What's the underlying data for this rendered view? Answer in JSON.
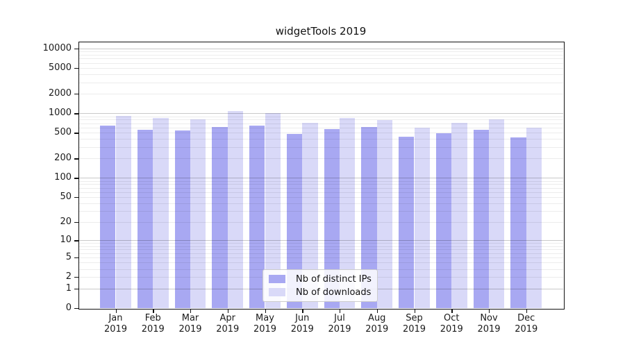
{
  "figure": {
    "title": "widgetTools 2019",
    "background_color": "#ffffff"
  },
  "chart_data": {
    "type": "bar",
    "title": "widgetTools 2019",
    "categories": [
      "Jan",
      "Feb",
      "Mar",
      "Apr",
      "May",
      "Jun",
      "Jul",
      "Aug",
      "Sep",
      "Oct",
      "Nov",
      "Dec"
    ],
    "category_sub_label": "2019",
    "series": [
      {
        "name": "Nb of distinct IPs",
        "color": "#a8a8f2",
        "values": [
          645,
          560,
          545,
          620,
          640,
          480,
          570,
          610,
          435,
          495,
          560,
          425
        ]
      },
      {
        "name": "Nb of downloads",
        "color": "#d9d9f8",
        "values": [
          920,
          845,
          815,
          1085,
          1000,
          715,
          855,
          795,
          605,
          715,
          805,
          595
        ]
      }
    ],
    "y_axis": {
      "scale": "log10(value+1)",
      "ticks": [
        {
          "value": 0,
          "label": "0"
        },
        {
          "value": 1,
          "label": "1"
        },
        {
          "value": 2,
          "label": "2"
        },
        {
          "value": 5,
          "label": "5"
        },
        {
          "value": 10,
          "label": "10"
        },
        {
          "value": 20,
          "label": "20"
        },
        {
          "value": 50,
          "label": "50"
        },
        {
          "value": 100,
          "label": "100"
        },
        {
          "value": 200,
          "label": "200"
        },
        {
          "value": 500,
          "label": "500"
        },
        {
          "value": 1000,
          "label": "1000"
        },
        {
          "value": 2000,
          "label": "2000"
        },
        {
          "value": 5000,
          "label": "5000"
        },
        {
          "value": 10000,
          "label": "10000"
        }
      ],
      "major_grid_values": [
        1,
        10,
        100,
        1000,
        10000
      ],
      "ylim": [
        0,
        12700
      ],
      "grid": "horizontal major + minor (2-9 per decade)"
    },
    "legend": {
      "position": "lower center",
      "entries": [
        "Nb of distinct IPs",
        "Nb of downloads"
      ]
    }
  }
}
